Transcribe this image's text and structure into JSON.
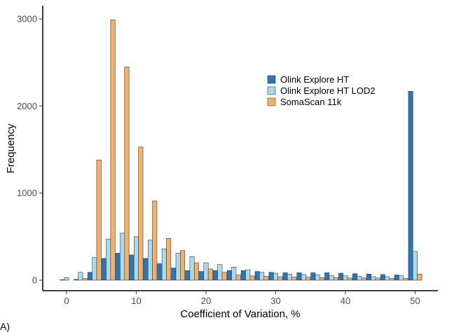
{
  "caption": "A)",
  "chart_data": {
    "type": "bar",
    "xlabel": "Coefficient of Variation, %",
    "ylabel": "Frequency",
    "xlim": [
      -2.5,
      52.5
    ],
    "ylim": [
      0,
      3100
    ],
    "xticks": [
      "0",
      "10",
      "20",
      "30",
      "40",
      "50"
    ],
    "yticks": [
      "0",
      "1000",
      "2000",
      "3000"
    ],
    "legend_position": "top-right",
    "bin_width": 2,
    "x": [
      0,
      2,
      4,
      6,
      8,
      10,
      12,
      14,
      16,
      18,
      20,
      22,
      24,
      26,
      28,
      30,
      32,
      34,
      36,
      38,
      40,
      42,
      44,
      46,
      48,
      50
    ],
    "series": [
      {
        "name": "Olink Explore HT",
        "color": "#2e75b6",
        "values": [
          5,
          10,
          90,
          250,
          310,
          290,
          250,
          190,
          140,
          110,
          100,
          110,
          110,
          110,
          100,
          90,
          85,
          85,
          85,
          85,
          80,
          75,
          70,
          65,
          60,
          2170
        ]
      },
      {
        "name": "Olink Explore HT LOD2",
        "color": "#a9dbec",
        "values": [
          30,
          90,
          260,
          470,
          540,
          500,
          460,
          360,
          310,
          270,
          200,
          180,
          150,
          120,
          90,
          80,
          70,
          65,
          60,
          55,
          50,
          45,
          40,
          40,
          50,
          330
        ]
      },
      {
        "name": "SomaScan 11k",
        "color": "#f4b066",
        "values": [
          0,
          20,
          1380,
          2990,
          2450,
          1530,
          910,
          480,
          340,
          200,
          130,
          90,
          60,
          50,
          45,
          40,
          35,
          35,
          30,
          30,
          25,
          25,
          25,
          20,
          20,
          70
        ]
      }
    ]
  }
}
